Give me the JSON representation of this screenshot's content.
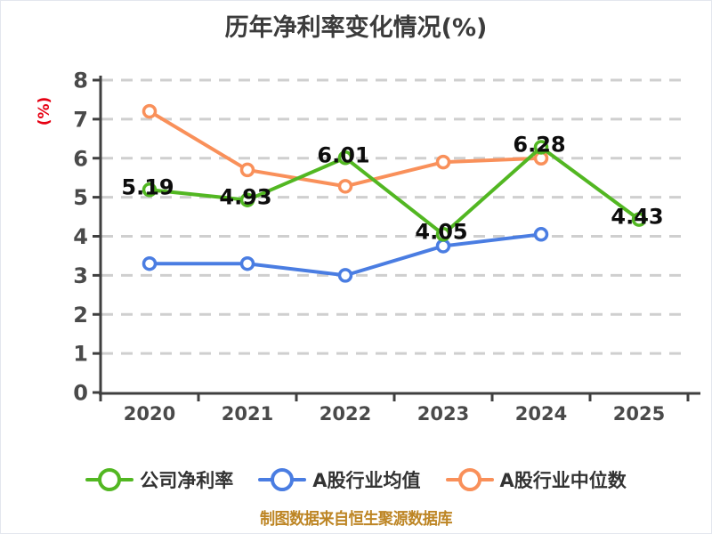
{
  "title": {
    "text": "历年净利率变化情况(%)",
    "color": "#3b3b3b"
  },
  "footer": {
    "text": "制图数据来自恒生聚源数据库",
    "color": "#bd8524"
  },
  "legend": {
    "text_color": "#333333"
  },
  "chart_data": {
    "type": "line",
    "title": "历年净利率变化情况(%)",
    "categories": [
      "2020",
      "2021",
      "2022",
      "2023",
      "2024",
      "2025"
    ],
    "series": [
      {
        "name": "公司净利率",
        "color": "#52b722",
        "values": [
          5.19,
          4.93,
          6.01,
          4.05,
          6.28,
          4.43
        ],
        "point_labels": [
          "5.19",
          "4.93",
          "6.01",
          "4.05",
          "6.28",
          "4.43"
        ]
      },
      {
        "name": "A股行业均值",
        "color": "#4a7de2",
        "values": [
          3.3,
          3.3,
          3.0,
          3.75,
          4.05,
          null
        ],
        "point_labels": []
      },
      {
        "name": "A股行业中位数",
        "color": "#f9905a",
        "values": [
          7.2,
          5.7,
          5.28,
          5.9,
          6.0,
          null
        ],
        "point_labels": []
      }
    ],
    "y_axis": {
      "name": "(%)",
      "name_color": "#e60012",
      "min": 0,
      "max": 8,
      "ticks": [
        0,
        1,
        2,
        3,
        4,
        5,
        6,
        7,
        8
      ]
    },
    "x_axis": {
      "boundary_ticks": 7
    },
    "grid": {
      "horizontal_dashed": true,
      "color": "#cfcfcf"
    },
    "axis_color": "#3f3f3f",
    "tick_label_color": "#4a4a4a",
    "data_label_color": "#0d0d0d",
    "legend_position": "bottom",
    "marker": {
      "fill": "#ffffff"
    }
  }
}
